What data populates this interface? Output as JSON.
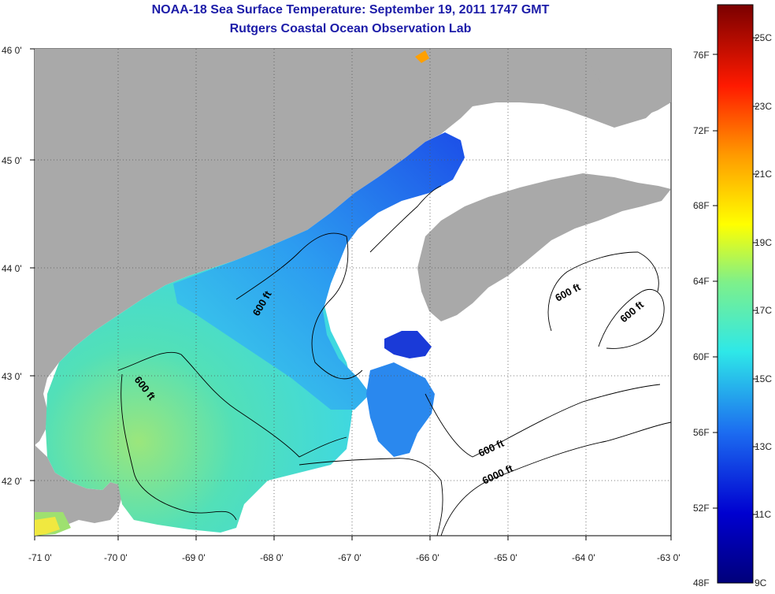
{
  "title": "NOAA-18 Sea Surface Temperature:  September 19, 2011 1747 GMT",
  "subtitle": "Rutgers Coastal Ocean Observation Lab",
  "lat_labels": [
    "46 0'",
    "45 0'",
    "44 0'",
    "43 0'",
    "42 0'"
  ],
  "lon_labels": [
    "-71 0'",
    "-70 0'",
    "-69 0'",
    "-68 0'",
    "-67 0'",
    "-66 0'",
    "-65 0'",
    "-64 0'",
    "-63 0'"
  ],
  "contour_labels": [
    "600 ft",
    "600 ft",
    "600 ft",
    "600 ft",
    "600 ft",
    "6000 ft"
  ],
  "colorbar": {
    "fahrenheit_labels": [
      "76F",
      "72F",
      "68F",
      "64F",
      "60F",
      "56F",
      "52F",
      "48F"
    ],
    "celsius_labels": [
      "25C",
      "23C",
      "21C",
      "19C",
      "17C",
      "15C",
      "13C",
      "11C",
      "9C"
    ],
    "colors": [
      "#7a0000",
      "#e00000",
      "#ff7a00",
      "#ffff00",
      "#8fe87a",
      "#2ee8e8",
      "#1e6ef0",
      "#0000c8",
      "#00007a"
    ]
  },
  "colors": {
    "land": "#a9a9a9",
    "no_data": "#ffffff",
    "title": "#1c1ca8"
  }
}
